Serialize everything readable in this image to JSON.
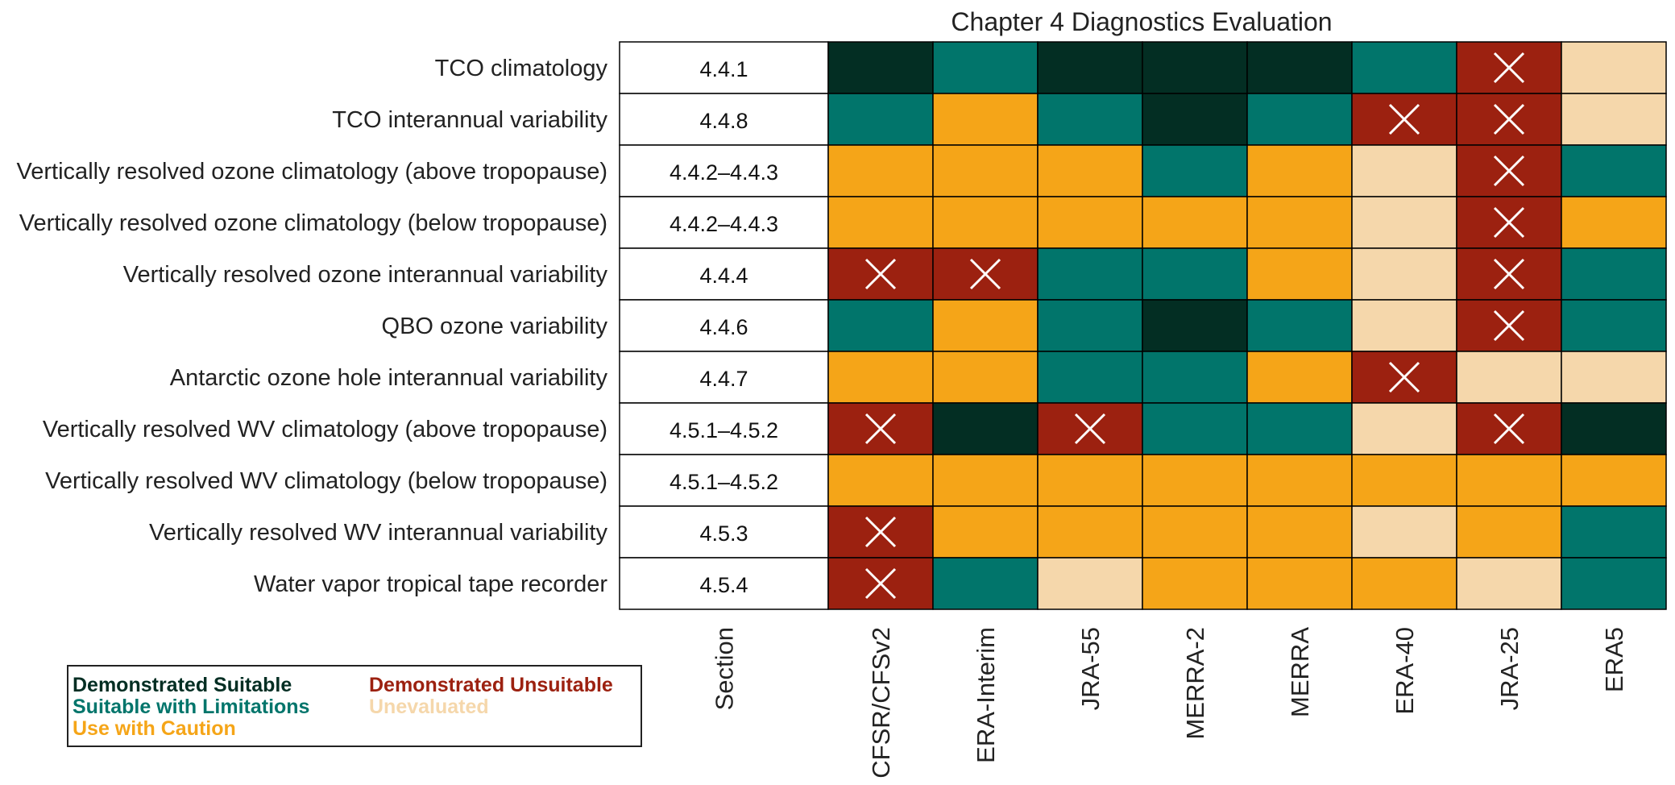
{
  "chart_data": {
    "type": "heatmap",
    "title": "Chapter 4 Diagnostics Evaluation",
    "section_header": "Section",
    "columns": [
      "CFSR/CFSv2",
      "ERA-Interim",
      "JRA-55",
      "MERRA-2",
      "MERRA",
      "ERA-40",
      "JRA-25",
      "ERA5"
    ],
    "rows": [
      {
        "label": "TCO climatology",
        "section": "4.4.1",
        "values": [
          "DS",
          "SL",
          "DS",
          "DS",
          "DS",
          "SL",
          "DU",
          "UE"
        ]
      },
      {
        "label": "TCO interannual variability",
        "section": "4.4.8",
        "values": [
          "SL",
          "UC",
          "SL",
          "DS",
          "SL",
          "DU",
          "DU",
          "UE"
        ]
      },
      {
        "label": "Vertically resolved ozone climatology (above tropopause)",
        "section": "4.4.2–4.4.3",
        "values": [
          "UC",
          "UC",
          "UC",
          "SL",
          "UC",
          "UE",
          "DU",
          "SL"
        ]
      },
      {
        "label": "Vertically resolved ozone climatology (below tropopause)",
        "section": "4.4.2–4.4.3",
        "values": [
          "UC",
          "UC",
          "UC",
          "UC",
          "UC",
          "UE",
          "DU",
          "UC"
        ]
      },
      {
        "label": "Vertically resolved ozone interannual variability",
        "section": "4.4.4",
        "values": [
          "DU",
          "DU",
          "SL",
          "SL",
          "UC",
          "UE",
          "DU",
          "SL"
        ]
      },
      {
        "label": "QBO ozone variability",
        "section": "4.4.6",
        "values": [
          "SL",
          "UC",
          "SL",
          "DS",
          "SL",
          "UE",
          "DU",
          "SL"
        ]
      },
      {
        "label": "Antarctic ozone hole interannual variability",
        "section": "4.4.7",
        "values": [
          "UC",
          "UC",
          "SL",
          "SL",
          "UC",
          "DU",
          "UE",
          "UE"
        ]
      },
      {
        "label": "Vertically resolved WV climatology (above tropopause)",
        "section": "4.5.1–4.5.2",
        "values": [
          "DU",
          "DS",
          "DU",
          "SL",
          "SL",
          "UE",
          "DU",
          "DS"
        ]
      },
      {
        "label": "Vertically resolved WV climatology (below tropopause)",
        "section": "4.5.1–4.5.2",
        "values": [
          "UC",
          "UC",
          "UC",
          "UC",
          "UC",
          "UC",
          "UC",
          "UC"
        ]
      },
      {
        "label": "Vertically resolved WV interannual variability",
        "section": "4.5.3",
        "values": [
          "DU",
          "UC",
          "UC",
          "UC",
          "UC",
          "UE",
          "UC",
          "SL"
        ]
      },
      {
        "label": "Water vapor tropical tape recorder",
        "section": "4.5.4",
        "values": [
          "DU",
          "SL",
          "UE",
          "UC",
          "UC",
          "UC",
          "UE",
          "SL"
        ]
      }
    ],
    "categories": {
      "DS": {
        "label": "Demonstrated Suitable",
        "color": "#032e23"
      },
      "SL": {
        "label": "Suitable with Limitations",
        "color": "#01756b"
      },
      "UC": {
        "label": "Use with Caution",
        "color": "#f5a518"
      },
      "DU": {
        "label": "Demonstrated Unsuitable",
        "color": "#9c2110"
      },
      "UE": {
        "label": "Unevaluated",
        "color": "#f5d7ab"
      }
    },
    "legend_order": [
      "DS",
      "SL",
      "UC",
      "DU",
      "UE"
    ],
    "legend_placement": "bottom-left",
    "unsuitable_marker": "x"
  }
}
